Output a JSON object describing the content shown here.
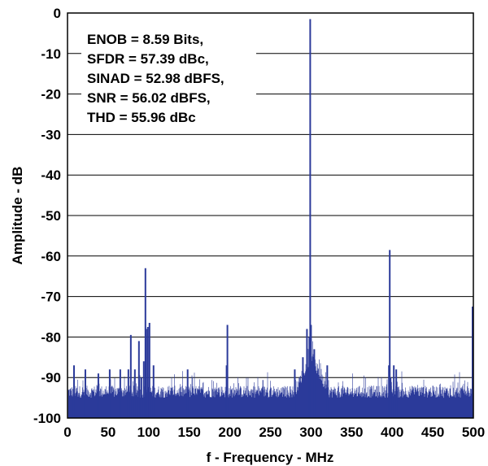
{
  "chart_data": {
    "type": "line",
    "title": "",
    "xlabel": "f - Frequency - MHz",
    "ylabel": "Amplitude - dB",
    "xlim": [
      0,
      500
    ],
    "ylim": [
      -100,
      0
    ],
    "x_ticks": [
      "0",
      "50",
      "100",
      "150",
      "200",
      "250",
      "300",
      "350",
      "400",
      "450",
      "500"
    ],
    "y_ticks": [
      "0",
      "-10",
      "-20",
      "-30",
      "-40",
      "-50",
      "-60",
      "-70",
      "-80",
      "-90",
      "-100"
    ],
    "grid": "horizontal",
    "line_color": "#2b3a9a",
    "noise_floor_db": -95,
    "series": [
      {
        "x": [
          8,
          22,
          38,
          52,
          65,
          75,
          78,
          83,
          88,
          91,
          94,
          96,
          97,
          99,
          101,
          106,
          148,
          196,
          197,
          280,
          290,
          295,
          298,
          299,
          300,
          304,
          320,
          396,
          397,
          398,
          402,
          405,
          499
        ],
        "values": [
          -87,
          -88,
          -89,
          -88,
          -88,
          -88,
          -79.5,
          -88,
          -81,
          -90,
          -86,
          -63,
          -78,
          -77.5,
          -76.5,
          -87,
          -88,
          -87,
          -77,
          -88,
          -85,
          -78,
          -80,
          -1.5,
          -77,
          -83,
          -87,
          -87,
          -58.5,
          -90,
          -87,
          -88,
          -72.5
        ]
      }
    ],
    "annotations": [
      "ENOB = 8.59 Bits,",
      "SFDR = 57.39 dBc,",
      "SINAD = 52.98 dBFS,",
      "SNR = 56.02 dBFS,",
      "THD = 55.96 dBc"
    ]
  }
}
